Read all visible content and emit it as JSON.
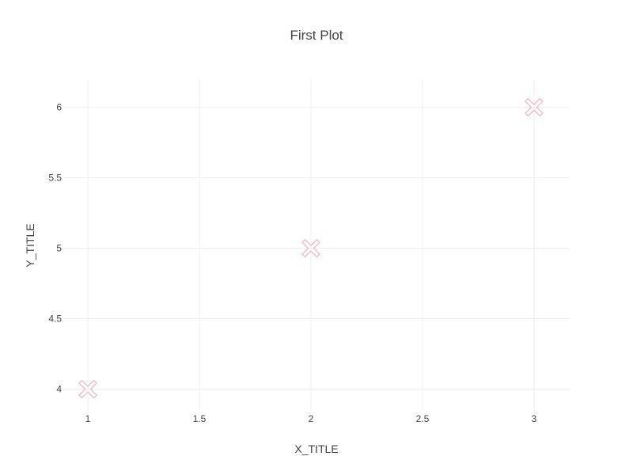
{
  "chart_data": {
    "type": "scatter",
    "title": "First Plot",
    "xlabel": "X_TITLE",
    "ylabel": "Y_TITLE",
    "x": [
      1,
      2,
      3
    ],
    "y": [
      4,
      5,
      6
    ],
    "xlim": [
      0.89,
      3.16
    ],
    "ylim": [
      3.84,
      6.2
    ],
    "xticks": [
      1,
      1.5,
      2,
      2.5,
      3
    ],
    "xtick_labels": [
      "1",
      "1.5",
      "2",
      "2.5",
      "3"
    ],
    "yticks": [
      4,
      4.5,
      5,
      5.5,
      6
    ],
    "ytick_labels": [
      "4",
      "4.5",
      "5",
      "5.5",
      "6"
    ],
    "marker": "x-thin-open",
    "marker_color": "#f4b6c2",
    "grid": true,
    "gridline_color": "#eeeeee",
    "legend": "none"
  }
}
